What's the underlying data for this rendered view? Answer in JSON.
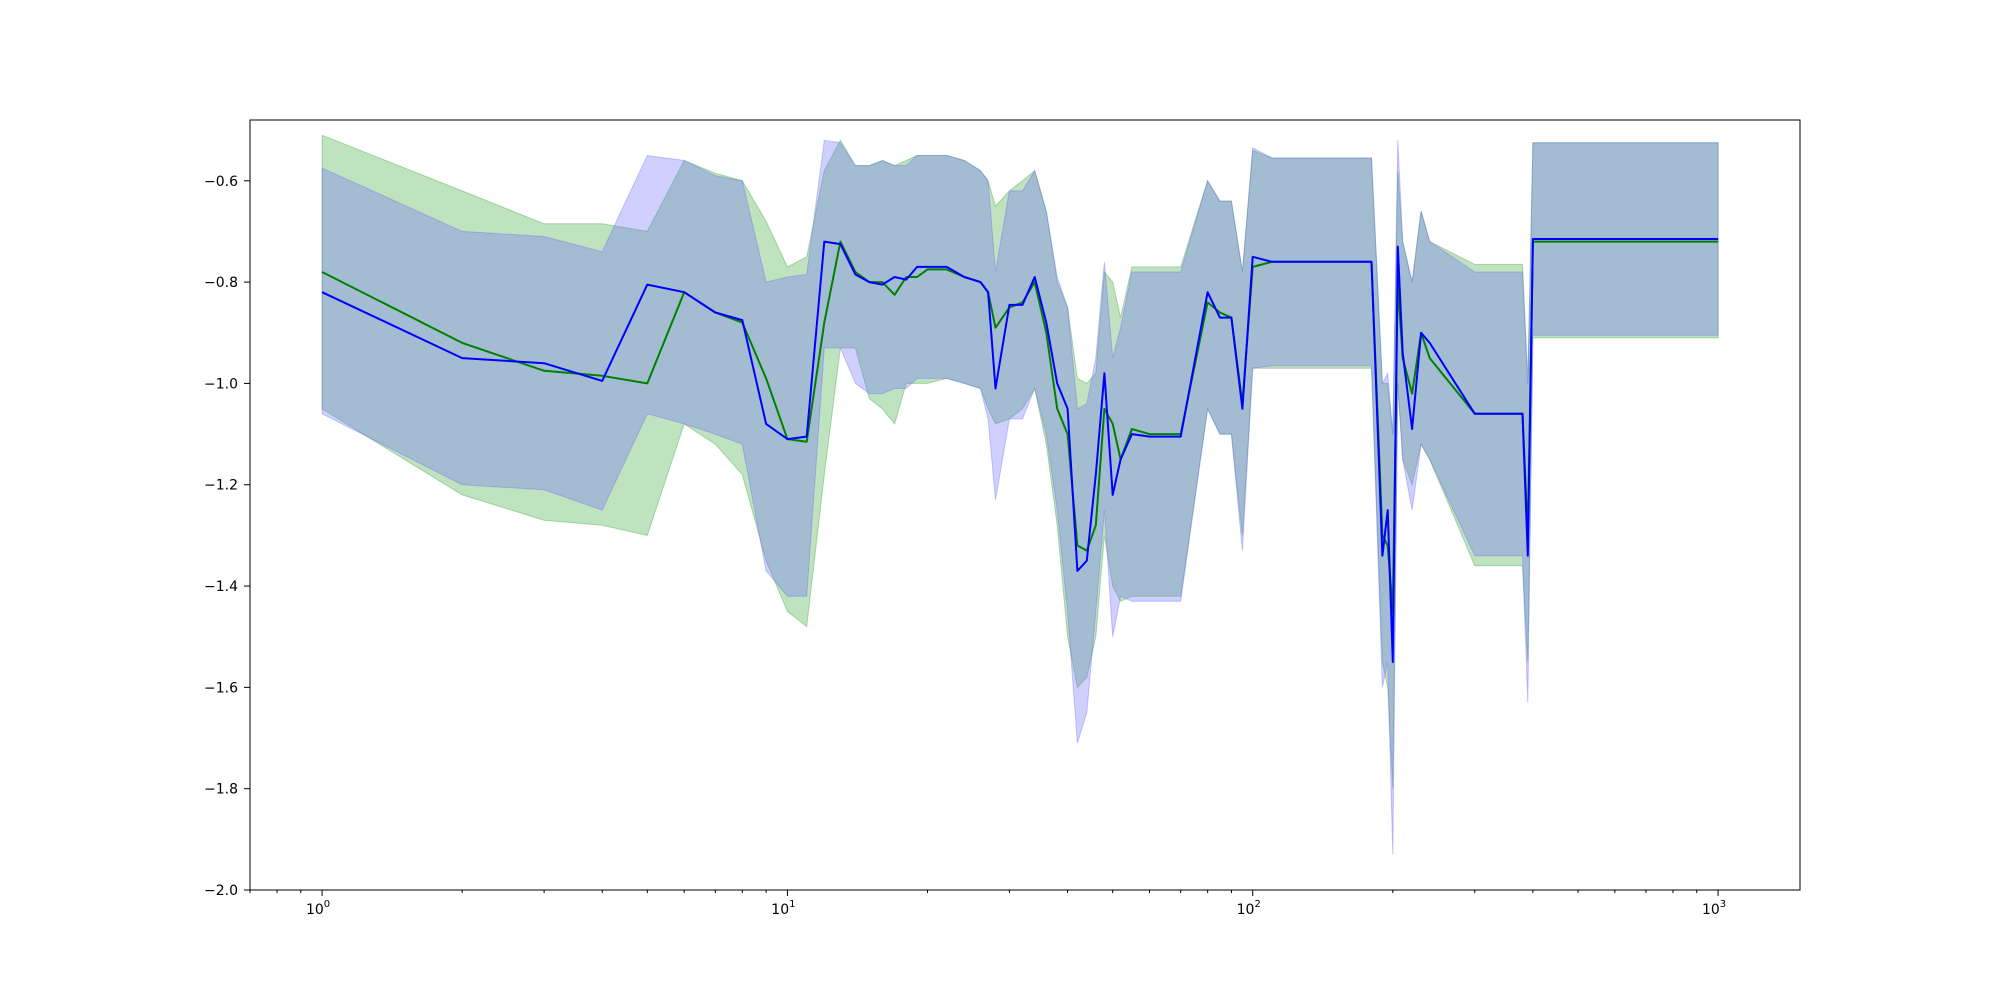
{
  "chart_data": {
    "type": "line",
    "title": "",
    "xlabel": "",
    "ylabel": "",
    "xscale": "log",
    "xlim": [
      0.7,
      1500
    ],
    "ylim": [
      -2.0,
      -0.48
    ],
    "grid": false,
    "legend": "none",
    "x_ticks": [
      {
        "value": 1,
        "base": "10",
        "exp": "0"
      },
      {
        "value": 10,
        "base": "10",
        "exp": "1"
      },
      {
        "value": 100,
        "base": "10",
        "exp": "2"
      },
      {
        "value": 1000,
        "base": "10",
        "exp": "3"
      }
    ],
    "y_ticks": [
      {
        "value": -0.6,
        "label": "−0.6"
      },
      {
        "value": -0.8,
        "label": "−0.8"
      },
      {
        "value": -1.0,
        "label": "−1.0"
      },
      {
        "value": -1.2,
        "label": "−1.2"
      },
      {
        "value": -1.4,
        "label": "−1.4"
      },
      {
        "value": -1.6,
        "label": "−1.6"
      },
      {
        "value": -1.8,
        "label": "−1.8"
      },
      {
        "value": -2.0,
        "label": "−2.0"
      }
    ],
    "series": [
      {
        "color": "#008000",
        "band_color": "#2ca02c",
        "x": [
          1,
          2,
          3,
          4,
          5,
          6,
          7,
          8,
          9,
          10,
          11,
          12,
          13,
          14,
          15,
          16,
          17,
          18,
          19,
          20,
          22,
          24,
          26,
          27,
          28,
          30,
          32,
          34,
          36,
          38,
          40,
          42,
          44,
          46,
          48,
          50,
          52,
          55,
          60,
          70,
          80,
          85,
          90,
          95,
          100,
          110,
          150,
          180,
          190,
          195,
          200,
          205,
          210,
          220,
          230,
          240,
          300,
          380,
          390,
          400,
          1000
        ],
        "values": [
          -0.78,
          -0.92,
          -0.975,
          -0.985,
          -1.0,
          -0.82,
          -0.86,
          -0.88,
          -0.99,
          -1.11,
          -1.115,
          -0.88,
          -0.72,
          -0.78,
          -0.8,
          -0.8,
          -0.825,
          -0.79,
          -0.79,
          -0.775,
          -0.775,
          -0.79,
          -0.8,
          -0.82,
          -0.89,
          -0.85,
          -0.84,
          -0.8,
          -0.9,
          -1.05,
          -1.1,
          -1.32,
          -1.33,
          -1.28,
          -1.05,
          -1.08,
          -1.15,
          -1.09,
          -1.1,
          -1.1,
          -0.84,
          -0.86,
          -0.87,
          -1.04,
          -0.77,
          -0.76,
          -0.76,
          -0.76,
          -1.3,
          -1.32,
          -1.45,
          -0.8,
          -0.95,
          -1.02,
          -0.9,
          -0.95,
          -1.06,
          -1.06,
          -1.3,
          -0.72,
          -0.72
        ],
        "lower": [
          -1.05,
          -1.22,
          -1.27,
          -1.28,
          -1.3,
          -1.08,
          -1.12,
          -1.18,
          -1.35,
          -1.45,
          -1.48,
          -1.18,
          -0.93,
          -0.93,
          -1.03,
          -1.05,
          -1.08,
          -1.0,
          -1.0,
          -1.0,
          -0.99,
          -1.0,
          -1.01,
          -1.05,
          -1.08,
          -1.07,
          -1.05,
          -1.01,
          -1.12,
          -1.28,
          -1.5,
          -1.6,
          -1.58,
          -1.5,
          -1.3,
          -1.4,
          -1.43,
          -1.42,
          -1.42,
          -1.42,
          -1.05,
          -1.1,
          -1.1,
          -1.3,
          -0.97,
          -0.97,
          -0.97,
          -0.97,
          -1.55,
          -1.6,
          -1.8,
          -1.0,
          -1.15,
          -1.2,
          -1.12,
          -1.15,
          -1.36,
          -1.36,
          -1.55,
          -0.91,
          -0.91
        ],
        "upper": [
          -0.51,
          -0.62,
          -0.685,
          -0.685,
          -0.7,
          -0.56,
          -0.585,
          -0.6,
          -0.68,
          -0.77,
          -0.75,
          -0.58,
          -0.52,
          -0.57,
          -0.57,
          -0.56,
          -0.57,
          -0.56,
          -0.55,
          -0.55,
          -0.55,
          -0.56,
          -0.58,
          -0.6,
          -0.65,
          -0.62,
          -0.6,
          -0.58,
          -0.66,
          -0.8,
          -0.85,
          -0.99,
          -1.0,
          -0.98,
          -0.78,
          -0.8,
          -0.87,
          -0.77,
          -0.77,
          -0.77,
          -0.6,
          -0.64,
          -0.64,
          -0.78,
          -0.54,
          -0.555,
          -0.555,
          -0.555,
          -1.0,
          -1.0,
          -1.1,
          -0.58,
          -0.72,
          -0.8,
          -0.66,
          -0.72,
          -0.765,
          -0.765,
          -1.0,
          -0.525,
          -0.525
        ]
      },
      {
        "color": "#0000ff",
        "band_color": "#6464ff",
        "x": [
          1,
          2,
          3,
          4,
          5,
          6,
          7,
          8,
          9,
          10,
          11,
          12,
          13,
          14,
          15,
          16,
          17,
          18,
          19,
          20,
          22,
          24,
          26,
          27,
          28,
          30,
          32,
          34,
          36,
          38,
          40,
          42,
          44,
          46,
          48,
          50,
          52,
          55,
          60,
          70,
          80,
          85,
          90,
          95,
          100,
          110,
          150,
          180,
          190,
          195,
          200,
          205,
          210,
          220,
          230,
          240,
          300,
          380,
          390,
          400,
          1000
        ],
        "values": [
          -0.82,
          -0.95,
          -0.96,
          -0.995,
          -0.805,
          -0.82,
          -0.86,
          -0.875,
          -1.08,
          -1.11,
          -1.105,
          -0.72,
          -0.725,
          -0.785,
          -0.8,
          -0.805,
          -0.79,
          -0.795,
          -0.77,
          -0.77,
          -0.77,
          -0.79,
          -0.8,
          -0.82,
          -1.01,
          -0.845,
          -0.845,
          -0.79,
          -0.88,
          -1.0,
          -1.05,
          -1.37,
          -1.35,
          -1.18,
          -0.98,
          -1.22,
          -1.15,
          -1.1,
          -1.105,
          -1.105,
          -0.82,
          -0.87,
          -0.87,
          -1.05,
          -0.75,
          -0.76,
          -0.76,
          -0.76,
          -1.34,
          -1.25,
          -1.55,
          -0.73,
          -0.94,
          -1.09,
          -0.9,
          -0.92,
          -1.06,
          -1.06,
          -1.34,
          -0.715,
          -0.715
        ],
        "lower": [
          -1.06,
          -1.2,
          -1.21,
          -1.25,
          -1.06,
          -1.08,
          -1.1,
          -1.12,
          -1.37,
          -1.42,
          -1.42,
          -0.93,
          -0.93,
          -1.0,
          -1.02,
          -1.02,
          -1.01,
          -1.01,
          -0.99,
          -0.99,
          -0.99,
          -1.0,
          -1.01,
          -1.07,
          -1.23,
          -1.07,
          -1.07,
          -1.01,
          -1.1,
          -1.25,
          -1.45,
          -1.71,
          -1.65,
          -1.45,
          -1.25,
          -1.5,
          -1.42,
          -1.43,
          -1.43,
          -1.43,
          -1.05,
          -1.1,
          -1.1,
          -1.33,
          -0.97,
          -0.965,
          -0.965,
          -0.965,
          -1.6,
          -1.55,
          -1.93,
          -1.0,
          -1.15,
          -1.25,
          -1.12,
          -1.15,
          -1.34,
          -1.34,
          -1.63,
          -0.905,
          -0.905
        ],
        "upper": [
          -0.575,
          -0.7,
          -0.71,
          -0.74,
          -0.55,
          -0.56,
          -0.59,
          -0.6,
          -0.8,
          -0.79,
          -0.785,
          -0.52,
          -0.525,
          -0.57,
          -0.57,
          -0.56,
          -0.57,
          -0.57,
          -0.55,
          -0.55,
          -0.55,
          -0.56,
          -0.58,
          -0.6,
          -0.78,
          -0.62,
          -0.62,
          -0.58,
          -0.66,
          -0.79,
          -0.85,
          -1.05,
          -1.04,
          -0.95,
          -0.76,
          -0.95,
          -0.89,
          -0.78,
          -0.78,
          -0.78,
          -0.6,
          -0.64,
          -0.64,
          -0.78,
          -0.535,
          -0.555,
          -0.555,
          -0.555,
          -1.0,
          -0.98,
          -1.1,
          -0.52,
          -0.72,
          -0.8,
          -0.66,
          -0.72,
          -0.78,
          -0.78,
          -1.0,
          -0.525,
          -0.525
        ]
      }
    ]
  }
}
